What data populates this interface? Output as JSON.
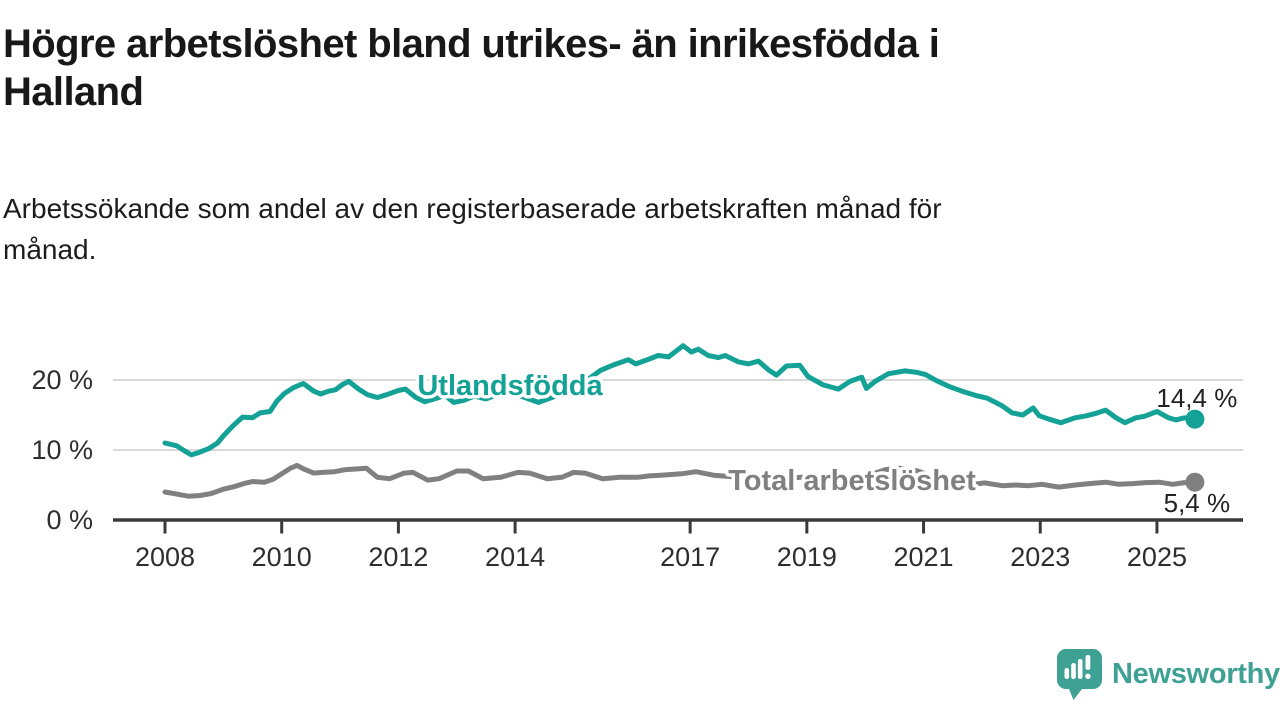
{
  "title": "Högre arbetslöshet bland utrikes- än inrikesfödda i\nHalland",
  "subtitle": "Arbetssökande som andel av den registerbaserade arbetskraften månad för\nmånad.",
  "branding": {
    "logo_text": "Newsworthy",
    "logo_icon": "newsworthy-speech-bubble-bar-chart-icon",
    "color": "#3fa193"
  },
  "colors": {
    "background": "#ffffff",
    "title_text": "#181818",
    "axis_text": "#2e2e2e",
    "axis_line": "#3a3a3a",
    "gridline": "#d9d9d9",
    "value_label_text": "#222222",
    "series_utlandsfodda": "#14a296",
    "series_total": "#808080"
  },
  "chart_data": {
    "type": "line",
    "title": "Högre arbetslöshet bland utrikes- än inrikesfödda i Halland",
    "subtitle": "Arbetssökande som andel av den registerbaserade arbetskraften månad för månad.",
    "x_unit": "year (decimal years, monthly observations)",
    "y_unit": "percent of registered labour force",
    "xlim": [
      2007.9,
      2025.9
    ],
    "ylim": [
      0,
      26
    ],
    "grid": "horizontal gridlines at 10 % and 20 %, dark baseline at 0 %",
    "legend_position": "inline labels on lines, end-value labels at right",
    "xticks": [
      2008,
      2010,
      2012,
      2014,
      2017,
      2019,
      2021,
      2023,
      2025
    ],
    "xtick_labels": [
      "2008",
      "2010",
      "2012",
      "2014",
      "2017",
      "2019",
      "2021",
      "2023",
      "2025"
    ],
    "yticks": [
      {
        "value": 0,
        "label": "0 %"
      },
      {
        "value": 10,
        "label": "10 %"
      },
      {
        "value": 20,
        "label": "20 %"
      }
    ],
    "series": [
      {
        "name": "Utlandsfödda",
        "slug": "utlandsfodda",
        "color": "#14a296",
        "end_value": 14.4,
        "end_label": "14,4 %",
        "points": [
          [
            2008.0,
            11.0
          ],
          [
            2008.2,
            10.6
          ],
          [
            2008.33,
            9.9
          ],
          [
            2008.45,
            9.3
          ],
          [
            2008.6,
            9.7
          ],
          [
            2008.75,
            10.2
          ],
          [
            2008.9,
            11.0
          ],
          [
            2009.0,
            12.0
          ],
          [
            2009.17,
            13.5
          ],
          [
            2009.33,
            14.7
          ],
          [
            2009.5,
            14.6
          ],
          [
            2009.63,
            15.3
          ],
          [
            2009.8,
            15.5
          ],
          [
            2009.92,
            17.0
          ],
          [
            2010.05,
            18.1
          ],
          [
            2010.2,
            18.9
          ],
          [
            2010.37,
            19.5
          ],
          [
            2010.55,
            18.4
          ],
          [
            2010.67,
            18.0
          ],
          [
            2010.8,
            18.4
          ],
          [
            2010.92,
            18.6
          ],
          [
            2011.05,
            19.4
          ],
          [
            2011.15,
            19.8
          ],
          [
            2011.32,
            18.7
          ],
          [
            2011.47,
            17.9
          ],
          [
            2011.64,
            17.5
          ],
          [
            2011.8,
            17.9
          ],
          [
            2012.0,
            18.5
          ],
          [
            2012.12,
            18.7
          ],
          [
            2012.3,
            17.5
          ],
          [
            2012.45,
            16.9
          ],
          [
            2012.62,
            17.3
          ],
          [
            2012.8,
            17.8
          ],
          [
            2012.95,
            16.8
          ],
          [
            2013.12,
            17.1
          ],
          [
            2013.3,
            17.7
          ],
          [
            2013.5,
            17.3
          ],
          [
            2013.7,
            17.9
          ],
          [
            2013.9,
            18.3
          ],
          [
            2014.1,
            17.7
          ],
          [
            2014.4,
            16.8
          ],
          [
            2014.6,
            17.4
          ],
          [
            2014.8,
            18.0
          ],
          [
            2015.0,
            18.8
          ],
          [
            2015.2,
            19.8
          ],
          [
            2015.47,
            21.4
          ],
          [
            2015.7,
            22.2
          ],
          [
            2015.94,
            22.9
          ],
          [
            2016.07,
            22.3
          ],
          [
            2016.3,
            23.0
          ],
          [
            2016.45,
            23.5
          ],
          [
            2016.63,
            23.3
          ],
          [
            2016.88,
            24.9
          ],
          [
            2017.02,
            24.0
          ],
          [
            2017.14,
            24.4
          ],
          [
            2017.31,
            23.5
          ],
          [
            2017.48,
            23.2
          ],
          [
            2017.6,
            23.5
          ],
          [
            2017.82,
            22.6
          ],
          [
            2018.0,
            22.3
          ],
          [
            2018.17,
            22.7
          ],
          [
            2018.35,
            21.4
          ],
          [
            2018.48,
            20.7
          ],
          [
            2018.65,
            22.0
          ],
          [
            2018.88,
            22.1
          ],
          [
            2019.02,
            20.5
          ],
          [
            2019.28,
            19.3
          ],
          [
            2019.54,
            18.7
          ],
          [
            2019.74,
            19.8
          ],
          [
            2019.94,
            20.4
          ],
          [
            2020.02,
            18.8
          ],
          [
            2020.17,
            19.8
          ],
          [
            2020.4,
            20.9
          ],
          [
            2020.68,
            21.3
          ],
          [
            2020.88,
            21.1
          ],
          [
            2021.03,
            20.8
          ],
          [
            2021.2,
            20.0
          ],
          [
            2021.43,
            19.1
          ],
          [
            2021.66,
            18.4
          ],
          [
            2021.89,
            17.8
          ],
          [
            2022.09,
            17.4
          ],
          [
            2022.35,
            16.3
          ],
          [
            2022.52,
            15.3
          ],
          [
            2022.7,
            15.0
          ],
          [
            2022.88,
            16.0
          ],
          [
            2022.98,
            14.9
          ],
          [
            2023.15,
            14.4
          ],
          [
            2023.35,
            13.9
          ],
          [
            2023.6,
            14.6
          ],
          [
            2023.8,
            14.9
          ],
          [
            2023.98,
            15.3
          ],
          [
            2024.12,
            15.7
          ],
          [
            2024.3,
            14.6
          ],
          [
            2024.45,
            13.9
          ],
          [
            2024.64,
            14.6
          ],
          [
            2024.78,
            14.8
          ],
          [
            2025.0,
            15.5
          ],
          [
            2025.2,
            14.6
          ],
          [
            2025.32,
            14.3
          ],
          [
            2025.47,
            14.6
          ],
          [
            2025.65,
            14.4
          ]
        ]
      },
      {
        "name": "Total arbetslöshet",
        "slug": "total-arbetsloshet",
        "color": "#808080",
        "end_value": 5.4,
        "end_label": "5,4 %",
        "points": [
          [
            2008.0,
            4.0
          ],
          [
            2008.2,
            3.7
          ],
          [
            2008.4,
            3.4
          ],
          [
            2008.6,
            3.5
          ],
          [
            2008.8,
            3.8
          ],
          [
            2009.0,
            4.4
          ],
          [
            2009.2,
            4.8
          ],
          [
            2009.35,
            5.2
          ],
          [
            2009.5,
            5.5
          ],
          [
            2009.7,
            5.4
          ],
          [
            2009.85,
            5.8
          ],
          [
            2010.0,
            6.6
          ],
          [
            2010.15,
            7.4
          ],
          [
            2010.26,
            7.8
          ],
          [
            2010.4,
            7.2
          ],
          [
            2010.55,
            6.7
          ],
          [
            2010.7,
            6.8
          ],
          [
            2010.9,
            6.9
          ],
          [
            2011.1,
            7.2
          ],
          [
            2011.3,
            7.3
          ],
          [
            2011.45,
            7.4
          ],
          [
            2011.64,
            6.1
          ],
          [
            2011.85,
            5.9
          ],
          [
            2012.1,
            6.7
          ],
          [
            2012.25,
            6.8
          ],
          [
            2012.5,
            5.7
          ],
          [
            2012.7,
            5.9
          ],
          [
            2013.0,
            7.0
          ],
          [
            2013.2,
            7.0
          ],
          [
            2013.45,
            5.9
          ],
          [
            2013.75,
            6.1
          ],
          [
            2014.05,
            6.8
          ],
          [
            2014.25,
            6.7
          ],
          [
            2014.55,
            5.9
          ],
          [
            2014.8,
            6.1
          ],
          [
            2015.0,
            6.8
          ],
          [
            2015.2,
            6.7
          ],
          [
            2015.5,
            5.9
          ],
          [
            2015.8,
            6.1
          ],
          [
            2016.1,
            6.1
          ],
          [
            2016.3,
            6.3
          ],
          [
            2016.5,
            6.4
          ],
          [
            2016.85,
            6.6
          ],
          [
            2017.1,
            6.9
          ],
          [
            2017.4,
            6.4
          ],
          [
            2017.7,
            6.2
          ],
          [
            2018.0,
            6.5
          ],
          [
            2018.3,
            6.2
          ],
          [
            2018.6,
            5.9
          ],
          [
            2018.9,
            6.1
          ],
          [
            2019.2,
            6.2
          ],
          [
            2019.5,
            6.0
          ],
          [
            2019.8,
            6.1
          ],
          [
            2020.1,
            6.5
          ],
          [
            2020.35,
            7.2
          ],
          [
            2020.6,
            7.4
          ],
          [
            2020.9,
            7.0
          ],
          [
            2021.1,
            6.4
          ],
          [
            2021.3,
            5.8
          ],
          [
            2021.6,
            5.2
          ],
          [
            2021.85,
            5.1
          ],
          [
            2022.05,
            5.3
          ],
          [
            2022.2,
            5.1
          ],
          [
            2022.35,
            4.9
          ],
          [
            2022.58,
            5.0
          ],
          [
            2022.8,
            4.9
          ],
          [
            2023.03,
            5.1
          ],
          [
            2023.32,
            4.7
          ],
          [
            2023.6,
            5.0
          ],
          [
            2023.84,
            5.2
          ],
          [
            2024.12,
            5.4
          ],
          [
            2024.35,
            5.1
          ],
          [
            2024.58,
            5.2
          ],
          [
            2024.8,
            5.35
          ],
          [
            2025.04,
            5.4
          ],
          [
            2025.27,
            5.1
          ],
          [
            2025.47,
            5.35
          ],
          [
            2025.65,
            5.4
          ]
        ]
      }
    ]
  }
}
